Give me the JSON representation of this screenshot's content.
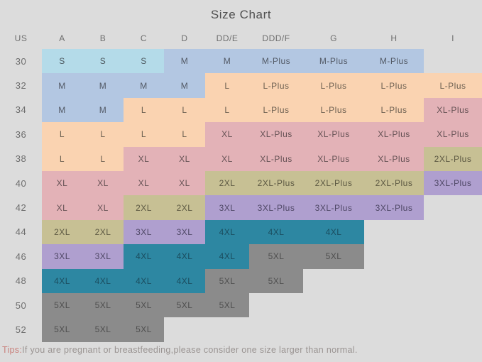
{
  "page": {
    "background": "#dcdcdc"
  },
  "chart_data": {
    "type": "table",
    "title": "Size Chart",
    "columns": [
      "US",
      "A",
      "B",
      "C",
      "D",
      "DD/E",
      "DDD/F",
      "G",
      "H",
      "I"
    ],
    "rows": [
      {
        "us": "30",
        "cells": [
          {
            "t": "S",
            "c": "lightblue"
          },
          {
            "t": "S",
            "c": "lightblue"
          },
          {
            "t": "S",
            "c": "lightblue"
          },
          {
            "t": "M",
            "c": "blue"
          },
          {
            "t": "M",
            "c": "blue"
          },
          {
            "t": "M-Plus",
            "c": "blue"
          },
          {
            "t": "M-Plus",
            "c": "blue"
          },
          {
            "t": "M-Plus",
            "c": "blue"
          },
          {
            "t": "",
            "c": ""
          }
        ]
      },
      {
        "us": "32",
        "cells": [
          {
            "t": "M",
            "c": "blue"
          },
          {
            "t": "M",
            "c": "blue"
          },
          {
            "t": "M",
            "c": "blue"
          },
          {
            "t": "M",
            "c": "blue"
          },
          {
            "t": "L",
            "c": "peach"
          },
          {
            "t": "L-Plus",
            "c": "peach"
          },
          {
            "t": "L-Plus",
            "c": "peach"
          },
          {
            "t": "L-Plus",
            "c": "peach"
          },
          {
            "t": "L-Plus",
            "c": "peach"
          }
        ]
      },
      {
        "us": "34",
        "cells": [
          {
            "t": "M",
            "c": "blue"
          },
          {
            "t": "M",
            "c": "blue"
          },
          {
            "t": "L",
            "c": "peach"
          },
          {
            "t": "L",
            "c": "peach"
          },
          {
            "t": "L",
            "c": "peach"
          },
          {
            "t": "L-Plus",
            "c": "peach"
          },
          {
            "t": "L-Plus",
            "c": "peach"
          },
          {
            "t": "L-Plus",
            "c": "peach"
          },
          {
            "t": "XL-Plus",
            "c": "rose"
          }
        ]
      },
      {
        "us": "36",
        "cells": [
          {
            "t": "L",
            "c": "peach"
          },
          {
            "t": "L",
            "c": "peach"
          },
          {
            "t": "L",
            "c": "peach"
          },
          {
            "t": "L",
            "c": "peach"
          },
          {
            "t": "XL",
            "c": "rose"
          },
          {
            "t": "XL-Plus",
            "c": "rose"
          },
          {
            "t": "XL-Plus",
            "c": "rose"
          },
          {
            "t": "XL-Plus",
            "c": "rose"
          },
          {
            "t": "XL-Plus",
            "c": "rose"
          }
        ]
      },
      {
        "us": "38",
        "cells": [
          {
            "t": "L",
            "c": "peach"
          },
          {
            "t": "L",
            "c": "peach"
          },
          {
            "t": "XL",
            "c": "rose"
          },
          {
            "t": "XL",
            "c": "rose"
          },
          {
            "t": "XL",
            "c": "rose"
          },
          {
            "t": "XL-Plus",
            "c": "rose"
          },
          {
            "t": "XL-Plus",
            "c": "rose"
          },
          {
            "t": "XL-Plus",
            "c": "rose"
          },
          {
            "t": "2XL-Plus",
            "c": "olive"
          }
        ]
      },
      {
        "us": "40",
        "cells": [
          {
            "t": "XL",
            "c": "rose"
          },
          {
            "t": "XL",
            "c": "rose"
          },
          {
            "t": "XL",
            "c": "rose"
          },
          {
            "t": "XL",
            "c": "rose"
          },
          {
            "t": "2XL",
            "c": "olive"
          },
          {
            "t": "2XL-Plus",
            "c": "olive"
          },
          {
            "t": "2XL-Plus",
            "c": "olive"
          },
          {
            "t": "2XL-Plus",
            "c": "olive"
          },
          {
            "t": "3XL-Plus",
            "c": "purple"
          }
        ]
      },
      {
        "us": "42",
        "cells": [
          {
            "t": "XL",
            "c": "rose"
          },
          {
            "t": "XL",
            "c": "rose"
          },
          {
            "t": "2XL",
            "c": "olive"
          },
          {
            "t": "2XL",
            "c": "olive"
          },
          {
            "t": "3XL",
            "c": "purple"
          },
          {
            "t": "3XL-Plus",
            "c": "purple"
          },
          {
            "t": "3XL-Plus",
            "c": "purple"
          },
          {
            "t": "3XL-Plus",
            "c": "purple"
          },
          {
            "t": "",
            "c": ""
          }
        ]
      },
      {
        "us": "44",
        "cells": [
          {
            "t": "2XL",
            "c": "olive"
          },
          {
            "t": "2XL",
            "c": "olive"
          },
          {
            "t": "3XL",
            "c": "purple"
          },
          {
            "t": "3XL",
            "c": "purple"
          },
          {
            "t": "4XL",
            "c": "teal"
          },
          {
            "t": "4XL",
            "c": "teal"
          },
          {
            "t": "4XL",
            "c": "teal"
          },
          {
            "t": "",
            "c": ""
          },
          {
            "t": "",
            "c": ""
          }
        ]
      },
      {
        "us": "46",
        "cells": [
          {
            "t": "3XL",
            "c": "purple"
          },
          {
            "t": "3XL",
            "c": "purple"
          },
          {
            "t": "4XL",
            "c": "teal"
          },
          {
            "t": "4XL",
            "c": "teal"
          },
          {
            "t": "4XL",
            "c": "teal"
          },
          {
            "t": "5XL",
            "c": "gray"
          },
          {
            "t": "5XL",
            "c": "gray"
          },
          {
            "t": "",
            "c": ""
          },
          {
            "t": "",
            "c": ""
          }
        ]
      },
      {
        "us": "48",
        "cells": [
          {
            "t": "4XL",
            "c": "teal"
          },
          {
            "t": "4XL",
            "c": "teal"
          },
          {
            "t": "4XL",
            "c": "teal"
          },
          {
            "t": "4XL",
            "c": "teal"
          },
          {
            "t": "5XL",
            "c": "gray"
          },
          {
            "t": "5XL",
            "c": "gray"
          },
          {
            "t": "",
            "c": ""
          },
          {
            "t": "",
            "c": ""
          },
          {
            "t": "",
            "c": ""
          }
        ]
      },
      {
        "us": "50",
        "cells": [
          {
            "t": "5XL",
            "c": "gray"
          },
          {
            "t": "5XL",
            "c": "gray"
          },
          {
            "t": "5XL",
            "c": "gray"
          },
          {
            "t": "5XL",
            "c": "gray"
          },
          {
            "t": "5XL",
            "c": "gray"
          },
          {
            "t": "",
            "c": ""
          },
          {
            "t": "",
            "c": ""
          },
          {
            "t": "",
            "c": ""
          },
          {
            "t": "",
            "c": ""
          }
        ]
      },
      {
        "us": "52",
        "cells": [
          {
            "t": "5XL",
            "c": "gray"
          },
          {
            "t": "5XL",
            "c": "gray"
          },
          {
            "t": "5XL",
            "c": "gray"
          },
          {
            "t": "",
            "c": ""
          },
          {
            "t": "",
            "c": ""
          },
          {
            "t": "",
            "c": ""
          },
          {
            "t": "",
            "c": ""
          },
          {
            "t": "",
            "c": ""
          },
          {
            "t": "",
            "c": ""
          }
        ]
      }
    ],
    "palette": {
      "lightblue": {
        "bg": "#b4dbe9",
        "text": "#4e5a60"
      },
      "blue": {
        "bg": "#b3c7e2",
        "text": "#535a66"
      },
      "peach": {
        "bg": "#fad3b1",
        "text": "#6e6152"
      },
      "rose": {
        "bg": "#e3b2b7",
        "text": "#665255"
      },
      "olive": {
        "bg": "#c7c094",
        "text": "#5d5943"
      },
      "purple": {
        "bg": "#af9fcf",
        "text": "#4f4866"
      },
      "teal": {
        "bg": "#2d87a2",
        "text": "#1b4d5f"
      },
      "gray": {
        "bg": "#8b8b8b",
        "text": "#4f4f4f"
      }
    },
    "footnote": {
      "prefix": "Tips:",
      "prefix_color": "#c9817c",
      "text": "If you are pregnant or breastfeeding,please consider one size larger than normal.",
      "text_color": "#9a9492"
    }
  }
}
